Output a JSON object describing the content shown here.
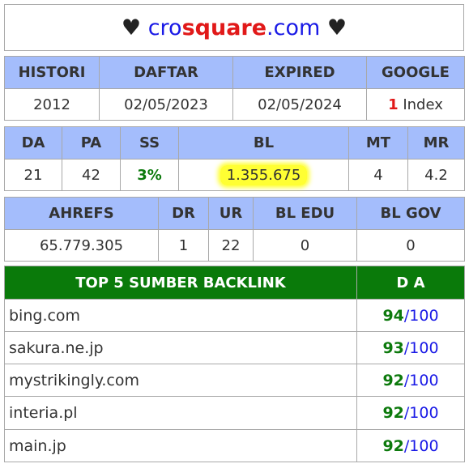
{
  "title": {
    "heart_left": "♥",
    "part1": "cro",
    "part2": "square",
    "part3": ".com",
    "heart_right": "♥"
  },
  "t1": {
    "headers": [
      "HISTORI",
      "DAFTAR",
      "EXPIRED",
      "GOOGLE"
    ],
    "values": [
      "2012",
      "02/05/2023",
      "02/05/2024"
    ],
    "google_count": "1",
    "google_label": "Index"
  },
  "t2": {
    "headers": [
      "DA",
      "PA",
      "SS",
      "BL",
      "MT",
      "MR"
    ],
    "values": [
      "21",
      "42",
      "3%",
      "1.355.675",
      "4",
      "4.2"
    ]
  },
  "t3": {
    "headers": [
      "AHREFS",
      "DR",
      "UR",
      "BL EDU",
      "BL GOV"
    ],
    "values": [
      "65.779.305",
      "1",
      "22",
      "0",
      "0"
    ]
  },
  "backlinks": {
    "header_site": "TOP 5 SUMBER BACKLINK",
    "header_da": "D A",
    "rows": [
      {
        "site": "bing.com",
        "da": "94",
        "max": "/100"
      },
      {
        "site": "sakura.ne.jp",
        "da": "93",
        "max": "/100"
      },
      {
        "site": "mystrikingly.com",
        "da": "92",
        "max": "/100"
      },
      {
        "site": "interia.pl",
        "da": "92",
        "max": "/100"
      },
      {
        "site": "main.jp",
        "da": "92",
        "max": "/100"
      }
    ]
  },
  "colors": {
    "header_bg": "#a4bdfc",
    "backlink_header_bg": "#0a7a0a",
    "highlight": "#ffff33",
    "green": "#0d7a0d",
    "red": "#e11919",
    "blue": "#1a1ae6"
  }
}
